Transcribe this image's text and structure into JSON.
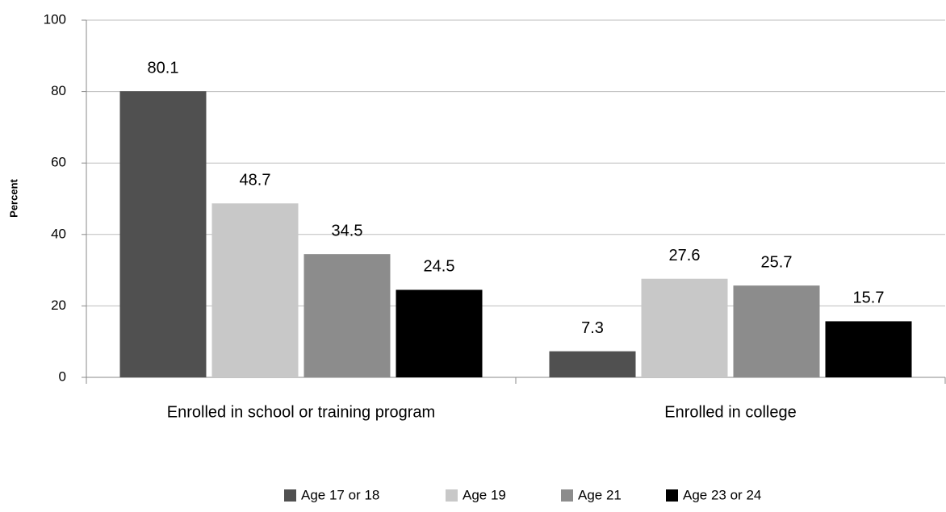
{
  "chart_data": {
    "type": "bar",
    "categories": [
      "Enrolled in school or training program",
      "Enrolled in college"
    ],
    "series": [
      {
        "name": "Age 17 or 18",
        "color": "#505050",
        "values": [
          80.1,
          7.3
        ]
      },
      {
        "name": "Age 19",
        "color": "#c8c8c8",
        "values": [
          48.7,
          27.6
        ]
      },
      {
        "name": "Age 21",
        "color": "#8c8c8c",
        "values": [
          34.5,
          25.7
        ]
      },
      {
        "name": "Age 23 or 24",
        "color": "#000000",
        "values": [
          24.5,
          15.7
        ]
      }
    ],
    "y_label": "Percent",
    "ylim": [
      0,
      100
    ],
    "yticks": [
      0,
      20,
      40,
      60,
      80,
      100
    ],
    "grid": true,
    "legend": "bottom"
  }
}
